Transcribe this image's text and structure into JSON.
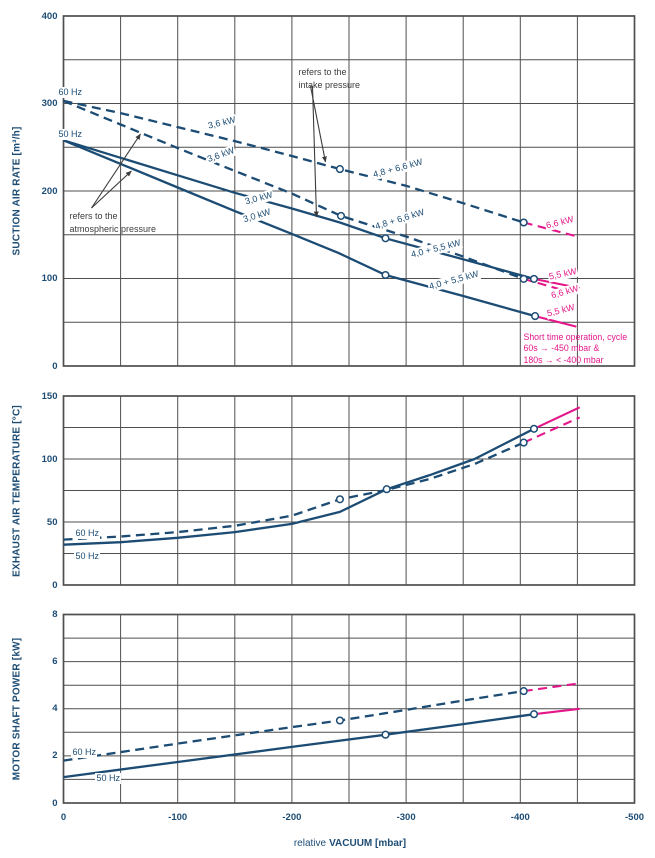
{
  "colors": {
    "navy": "#1c4c74",
    "pink": "#e3178a",
    "grid": "#4f4f4f",
    "annotation": "#3c3c3c"
  },
  "x_axis": {
    "title_regular": "relative",
    "title_bold": "VACUUM  [mbar]",
    "grid_values": [
      0,
      -50,
      -100,
      -150,
      -200,
      -250,
      -300,
      -350,
      -400,
      -450,
      -500
    ],
    "ticks": [
      {
        "v": 0,
        "label": "0"
      },
      {
        "v": -100,
        "label": "-100"
      },
      {
        "v": -200,
        "label": "-200"
      },
      {
        "v": -300,
        "label": "-300"
      },
      {
        "v": -400,
        "label": "-400"
      },
      {
        "v": -500,
        "label": "-500"
      }
    ]
  },
  "chart_data": [
    {
      "type": "line",
      "name": "suction-air-rate",
      "ylabel": "SUCTION AIR RATE [m³/h]",
      "xlabel": "relative VACUUM [mbar]",
      "xlim": [
        0,
        -500
      ],
      "ylim": [
        0,
        400
      ],
      "grid_values": [
        0,
        50,
        100,
        150,
        200,
        250,
        300,
        350,
        400
      ],
      "yticks": [
        {
          "v": 0,
          "label": "0"
        },
        {
          "v": 100,
          "label": "100"
        },
        {
          "v": 200,
          "label": "200"
        },
        {
          "v": 300,
          "label": "300"
        },
        {
          "v": 400,
          "label": "400"
        }
      ],
      "series": [
        {
          "name": "60 Hz - refers to the intake pressure",
          "hz": "60 Hz",
          "style": "dashed",
          "points": [
            [
              0,
              303
            ],
            [
              -50,
              289
            ],
            [
              -100,
              273
            ],
            [
              -150,
              257
            ],
            [
              -200,
              240
            ],
            [
              -242,
              225
            ],
            [
              -300,
              206
            ],
            [
              -350,
              186
            ],
            [
              -403,
              164
            ]
          ],
          "short_time_ext": [
            [
              -403,
              164
            ],
            [
              -450,
              148
            ]
          ],
          "markers": [
            [
              -242,
              225
            ],
            [
              -403,
              164
            ]
          ]
        },
        {
          "name": "60 Hz - refers to the atmospheric pressure",
          "hz": "60 Hz",
          "style": "dashed",
          "points": [
            [
              0,
              303
            ],
            [
              -50,
              276
            ],
            [
              -100,
              249
            ],
            [
              -150,
              223
            ],
            [
              -200,
              197
            ],
            [
              -243,
              171.5
            ],
            [
              -300,
              148
            ],
            [
              -350,
              125
            ],
            [
              -403,
              99.5
            ]
          ],
          "short_time_ext": [
            [
              -403,
              99.5
            ],
            [
              -450,
              82
            ]
          ],
          "markers": [
            [
              -243,
              171.5
            ],
            [
              -403,
              99.5
            ]
          ]
        },
        {
          "name": "50 Hz - refers to the intake pressure",
          "hz": "50 Hz",
          "style": "solid",
          "points": [
            [
              0,
              258
            ],
            [
              -50,
              238
            ],
            [
              -100,
              218
            ],
            [
              -150,
              198
            ],
            [
              -200,
              180
            ],
            [
              -242,
              164
            ],
            [
              -282,
              146
            ],
            [
              -350,
              122
            ],
            [
              -412,
              99.5
            ]
          ],
          "short_time_ext": [
            [
              -412,
              99.5
            ],
            [
              -452,
              89
            ]
          ],
          "markers": [
            [
              -282,
              146
            ],
            [
              -412,
              99.5
            ]
          ]
        },
        {
          "name": "50 Hz - refers to the atmospheric pressure",
          "hz": "50 Hz",
          "style": "solid",
          "points": [
            [
              0,
              258
            ],
            [
              -50,
              231
            ],
            [
              -100,
              204
            ],
            [
              -150,
              177
            ],
            [
              -200,
              151
            ],
            [
              -241,
              129
            ],
            [
              -282,
              104
            ],
            [
              -350,
              80
            ],
            [
              -413,
              57
            ]
          ],
          "short_time_ext": [
            [
              -413,
              57
            ],
            [
              -449,
              45
            ]
          ],
          "markers": [
            [
              -282,
              104
            ],
            [
              -413,
              57
            ]
          ]
        }
      ],
      "labels": [
        {
          "text": "60 Hz",
          "x": 5.25,
          "v": 318.9,
          "rot": 0,
          "kind": "freq"
        },
        {
          "text": "50 Hz",
          "x": 5.25,
          "v": 270.9,
          "rot": 0,
          "kind": "freq"
        },
        {
          "text": "3,6 kW",
          "x": -125.2,
          "v": 280.0,
          "rot": -13,
          "kind": "power"
        },
        {
          "text": "3,6 kW",
          "x": -124.3,
          "v": 241.1,
          "rot": -20,
          "kind": "power"
        },
        {
          "text": "3,0 kW",
          "x": -157.6,
          "v": 193.1,
          "rot": -15,
          "kind": "power"
        },
        {
          "text": "3,0 kW",
          "x": -155.0,
          "v": 172.6,
          "rot": -17,
          "kind": "power"
        },
        {
          "text": "4,8 + 6,6 kW",
          "x": -269.7,
          "v": 224.0,
          "rot": -15,
          "kind": "power"
        },
        {
          "text": "4,8 + 6,6 kW",
          "x": -271.4,
          "v": 164.6,
          "rot": -17,
          "kind": "power"
        },
        {
          "text": "4,0 + 5,5 kW",
          "x": -302.9,
          "v": 132.6,
          "rot": -14,
          "kind": "power"
        },
        {
          "text": "4,0 + 5,5 kW",
          "x": -318.7,
          "v": 96.0,
          "rot": -15,
          "kind": "power"
        },
        {
          "text": "6,6 kW",
          "x": -421.1,
          "v": 165.7,
          "rot": -14,
          "kind": "power",
          "color": "pink"
        },
        {
          "text": "5,5 kW",
          "x": -423.7,
          "v": 107.4,
          "rot": -12,
          "kind": "power",
          "color": "pink"
        },
        {
          "text": "6,6 kW",
          "x": -425.5,
          "v": 85.7,
          "rot": -16,
          "kind": "power",
          "color": "pink"
        },
        {
          "text": "5,5 kW",
          "x": -422.0,
          "v": 65.1,
          "rot": -14,
          "kind": "power",
          "color": "pink"
        }
      ],
      "notes": [
        {
          "lines": [
            "refers to the",
            "atmospheric pressure"
          ],
          "x": -5.25,
          "v": 178.3,
          "color": "annotation",
          "name": "atmospheric-pressure-note"
        },
        {
          "lines": [
            "refers to the",
            "intake pressure"
          ],
          "x": -205.8,
          "v": 342.9,
          "color": "annotation",
          "name": "intake-pressure-note"
        },
        {
          "lines": [
            "Short time operation, cycle",
            "  60s →    -450 mbar  &",
            "180s → < -400 mbar"
          ],
          "x": -402.8,
          "v": 38.9,
          "color": "pink",
          "name": "short-time-operation-note"
        }
      ],
      "arrows": [
        {
          "from": [
            -24.5,
            180.6
          ],
          "to": [
            -67.4,
            265.1
          ]
        },
        {
          "from": [
            -24.5,
            180.6
          ],
          "to": [
            -59.5,
            222.9
          ]
        },
        {
          "from": [
            -216.3,
            320.0
          ],
          "to": [
            -229.4,
            233.1
          ]
        },
        {
          "from": [
            -218.0,
            320.0
          ],
          "to": [
            -221.5,
            170.3
          ]
        }
      ]
    },
    {
      "type": "line",
      "name": "exhaust-air-temperature",
      "ylabel": "EXHAUST AIR TEMPERATURE [°C]",
      "xlabel": "relative VACUUM [mbar]",
      "xlim": [
        0,
        -500
      ],
      "ylim": [
        0,
        150
      ],
      "grid_values": [
        0,
        25,
        50,
        75,
        100,
        125,
        150
      ],
      "yticks": [
        {
          "v": 0,
          "label": "0"
        },
        {
          "v": 50,
          "label": "50"
        },
        {
          "v": 100,
          "label": "100"
        },
        {
          "v": 150,
          "label": "150"
        }
      ],
      "series": [
        {
          "name": "60 Hz",
          "hz": "60 Hz",
          "style": "dashed",
          "points": [
            [
              0,
              36
            ],
            [
              -50,
              38.5
            ],
            [
              -100,
              42
            ],
            [
              -150,
              47
            ],
            [
              -200,
              55
            ],
            [
              -242,
              68
            ],
            [
              -283,
              75.5
            ],
            [
              -320,
              84
            ],
            [
              -360,
              96
            ],
            [
              -403,
              113
            ]
          ],
          "short_time_ext": [
            [
              -403,
              113
            ],
            [
              -452,
              133
            ]
          ],
          "markers": [
            [
              -242,
              68
            ],
            [
              -403,
              113
            ]
          ]
        },
        {
          "name": "50 Hz",
          "hz": "50 Hz",
          "style": "solid",
          "points": [
            [
              0,
              32
            ],
            [
              -50,
              34
            ],
            [
              -100,
              37.5
            ],
            [
              -150,
              42
            ],
            [
              -200,
              48.5
            ],
            [
              -242,
              58
            ],
            [
              -283,
              76
            ],
            [
              -320,
              87
            ],
            [
              -360,
              100
            ],
            [
              -412,
              124
            ]
          ],
          "short_time_ext": [
            [
              -412,
              124
            ],
            [
              -452,
              141
            ]
          ],
          "markers": [
            [
              -283,
              76
            ],
            [
              -412,
              124
            ]
          ]
        }
      ],
      "labels": [
        {
          "text": "60 Hz",
          "x": -9.6,
          "v": 45.2,
          "rot": 0,
          "kind": "freq"
        },
        {
          "text": "50 Hz",
          "x": -9.6,
          "v": 27.0,
          "rot": 0,
          "kind": "freq"
        }
      ],
      "notes": [],
      "arrows": []
    },
    {
      "type": "line",
      "name": "motor-shaft-power",
      "ylabel": "MOTOR SHAFT POWER  [kW]",
      "xlabel": "relative VACUUM [mbar]",
      "xlim": [
        0,
        -500
      ],
      "ylim": [
        0,
        8
      ],
      "grid_values": [
        0,
        1,
        2,
        3,
        4,
        5,
        6,
        7,
        8
      ],
      "yticks": [
        {
          "v": 0,
          "label": "0"
        },
        {
          "v": 2,
          "label": "2"
        },
        {
          "v": 4,
          "label": "4"
        },
        {
          "v": 6,
          "label": "6"
        },
        {
          "v": 8,
          "label": "8"
        }
      ],
      "series": [
        {
          "name": "60 Hz",
          "hz": "60 Hz",
          "style": "dashed",
          "points": [
            [
              0,
              1.8
            ],
            [
              -100,
              2.52
            ],
            [
              -200,
              3.22
            ],
            [
              -242,
              3.5
            ],
            [
              -300,
              3.95
            ],
            [
              -350,
              4.35
            ],
            [
              -403,
              4.75
            ]
          ],
          "short_time_ext": [
            [
              -403,
              4.75
            ],
            [
              -452,
              5.08
            ]
          ],
          "markers": [
            [
              -242,
              3.5
            ],
            [
              -403,
              4.75
            ]
          ]
        },
        {
          "name": "50 Hz",
          "hz": "50 Hz",
          "style": "solid",
          "points": [
            [
              0,
              1.1
            ],
            [
              -100,
              1.74
            ],
            [
              -200,
              2.38
            ],
            [
              -282,
              2.9
            ],
            [
              -350,
              3.35
            ],
            [
              -412,
              3.77
            ]
          ],
          "short_time_ext": [
            [
              -412,
              3.77
            ],
            [
              -452,
              4.0
            ]
          ],
          "markers": [
            [
              -282,
              2.9
            ],
            [
              -412,
              3.77
            ]
          ]
        }
      ],
      "labels": [
        {
          "text": "60 Hz",
          "x": -7.0,
          "v": 2.38,
          "rot": 0,
          "kind": "freq"
        },
        {
          "text": "50 Hz",
          "x": -28.0,
          "v": 1.27,
          "rot": 0,
          "kind": "freq"
        }
      ],
      "notes": [],
      "arrows": []
    }
  ]
}
